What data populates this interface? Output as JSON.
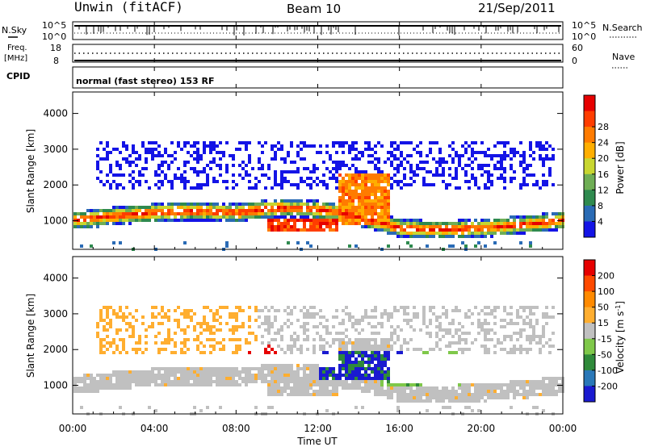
{
  "header": {
    "station": "Unwin (fitACF)",
    "beam": "Beam 10",
    "date": "21/Sep/2011"
  },
  "panels": {
    "nsky": {
      "label": "N.Sky",
      "tick_top": "10^5",
      "tick_bottom": "10^0",
      "right_label": "N.Search"
    },
    "freq": {
      "label_line1": "Freq.",
      "label_line2": "[MHz]",
      "tick_top": "18",
      "tick_bottom": "8",
      "right_tick_top": "60",
      "right_tick_bottom": "0",
      "right_label": "Nave"
    },
    "cpid": {
      "label": "CPID",
      "mode": "normal (fast stereo) 153 RF"
    }
  },
  "chart_data": [
    {
      "type": "heatmap",
      "name": "power",
      "xlabel": "Time UT",
      "ylabel": "Slant Range [km]",
      "x_ticks": [
        "00:00",
        "04:00",
        "08:00",
        "12:00",
        "16:00",
        "20:00",
        "00:00"
      ],
      "y_ticks": [
        "1000",
        "2000",
        "3000",
        "4000"
      ],
      "ylim": [
        200,
        4600
      ],
      "colorbar": {
        "label": "Power [dB]",
        "ticks": [
          "4",
          "8",
          "12",
          "16",
          "20",
          "24",
          "28"
        ],
        "colors": [
          "#1414e6",
          "#2a6bb5",
          "#2f8a4f",
          "#6fae55",
          "#c8d630",
          "#ffae00",
          "#ff7b00",
          "#ff3d00",
          "#e60000"
        ]
      }
    },
    {
      "type": "heatmap",
      "name": "velocity",
      "xlabel": "Time UT",
      "ylabel": "Slant Range [km]",
      "x_ticks": [
        "00:00",
        "04:00",
        "08:00",
        "12:00",
        "16:00",
        "20:00",
        "00:00"
      ],
      "y_ticks": [
        "1000",
        "2000",
        "3000",
        "4000"
      ],
      "ylim": [
        200,
        4600
      ],
      "colorbar": {
        "label": "Velocity [m s^-1]",
        "ticks": [
          "200",
          "100",
          "50",
          "15",
          "-15",
          "-50",
          "-100",
          "-200"
        ],
        "colors": [
          "#1a1ad0",
          "#2a78b8",
          "#2f8a3a",
          "#7fc84a",
          "#c0c0c0",
          "#ffae30",
          "#ff8a00",
          "#ff4a00",
          "#e60000"
        ]
      }
    }
  ],
  "bottom_axis": {
    "label": "Time UT"
  }
}
